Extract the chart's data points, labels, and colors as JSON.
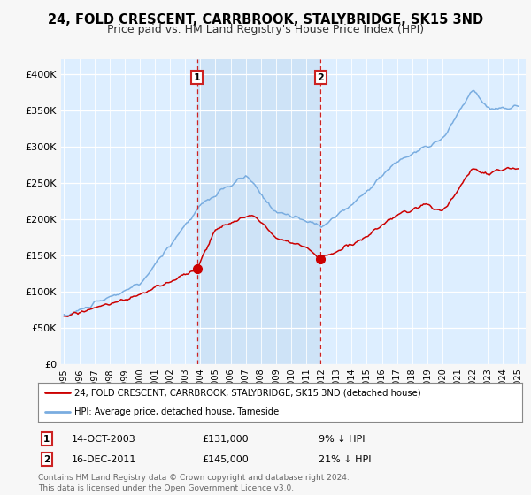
{
  "title": "24, FOLD CRESCENT, CARRBROOK, STALYBRIDGE, SK15 3ND",
  "subtitle": "Price paid vs. HM Land Registry's House Price Index (HPI)",
  "title_fontsize": 10.5,
  "subtitle_fontsize": 9,
  "background_color": "#f7f7f7",
  "plot_bg_color": "#ddeeff",
  "sale1_label": "14-OCT-2003",
  "sale1_price": 131000,
  "sale1_text": "9% ↓ HPI",
  "sale1_x": 2003.79,
  "sale2_label": "16-DEC-2011",
  "sale2_price": 145000,
  "sale2_text": "21% ↓ HPI",
  "sale2_x": 2011.96,
  "legend_line1": "24, FOLD CRESCENT, CARRBROOK, STALYBRIDGE, SK15 3ND (detached house)",
  "legend_line2": "HPI: Average price, detached house, Tameside",
  "footer": "Contains HM Land Registry data © Crown copyright and database right 2024.\nThis data is licensed under the Open Government Licence v3.0.",
  "ylim": [
    0,
    420000
  ],
  "yticks": [
    0,
    50000,
    100000,
    150000,
    200000,
    250000,
    300000,
    350000,
    400000
  ],
  "ytick_labels": [
    "£0",
    "£50K",
    "£100K",
    "£150K",
    "£200K",
    "£250K",
    "£300K",
    "£350K",
    "£400K"
  ],
  "xlim_left": 1994.8,
  "xlim_right": 2025.5,
  "red_color": "#cc0000",
  "blue_color": "#7aade0",
  "annot_color": "#cc2222",
  "shade_color": "#c8dff5"
}
